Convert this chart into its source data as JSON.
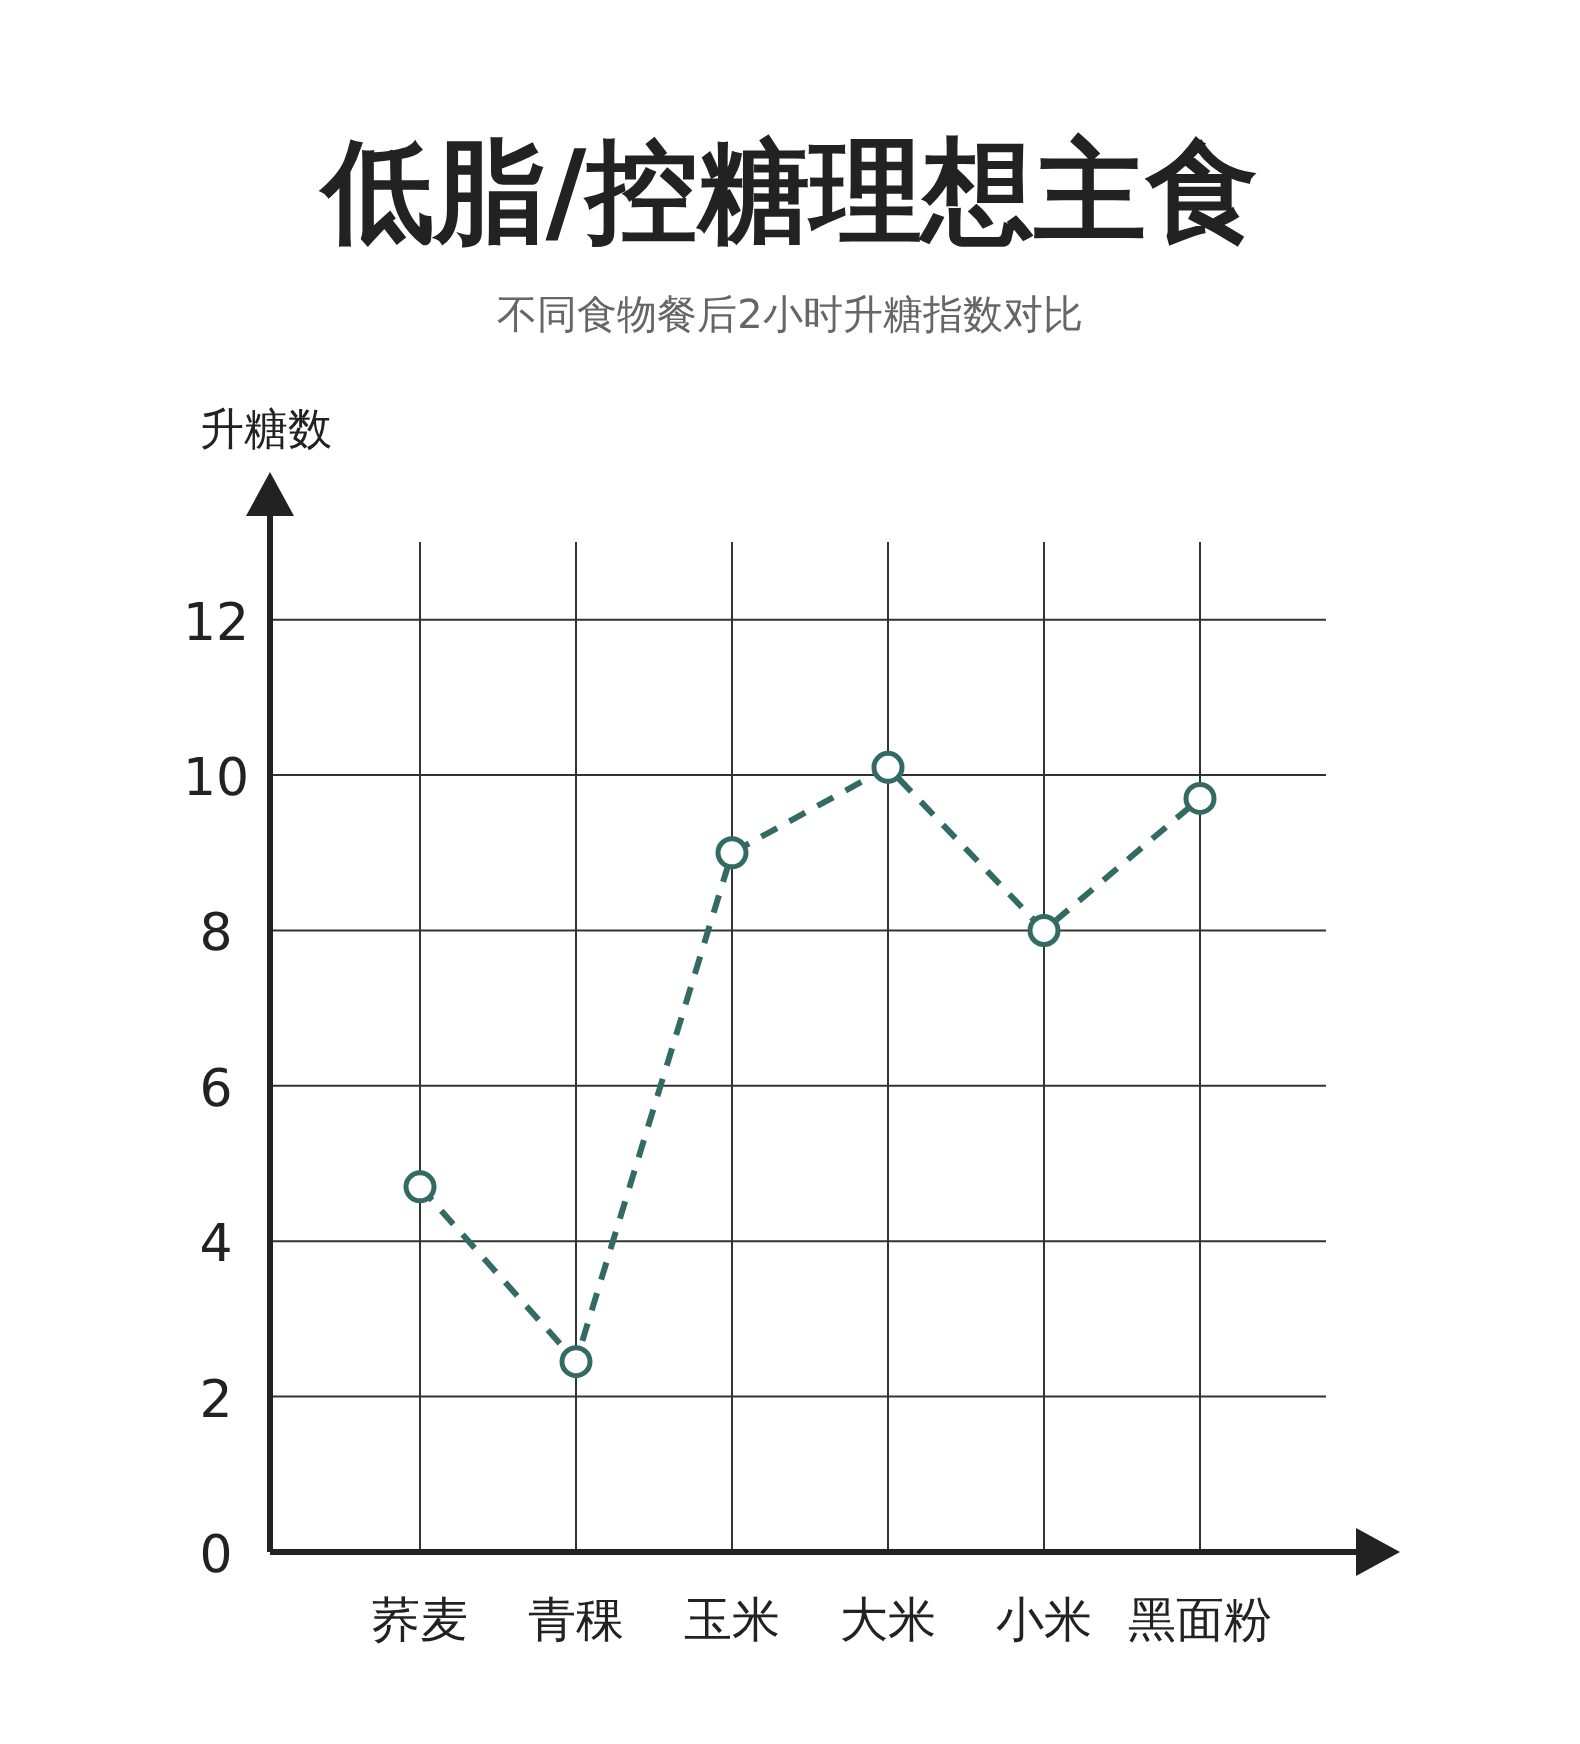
{
  "chart_data": {
    "type": "line",
    "title": "低脂/控糖理想主食",
    "subtitle": "不同食物餐后2小时升糖指数对比",
    "ylabel": "升糖数",
    "categories": [
      "荞麦",
      "青稞",
      "玉米",
      "大米",
      "小米",
      "黑面粉"
    ],
    "series": [
      {
        "color": "#336b64",
        "values": [
          4.7,
          2.45,
          9.0,
          10.1,
          8.0,
          9.7
        ]
      }
    ],
    "ylim": [
      0,
      13
    ],
    "yticks": [
      0,
      2,
      4,
      6,
      8,
      10,
      12
    ],
    "grid": true,
    "marker": "circle",
    "line_style": "dashed"
  }
}
